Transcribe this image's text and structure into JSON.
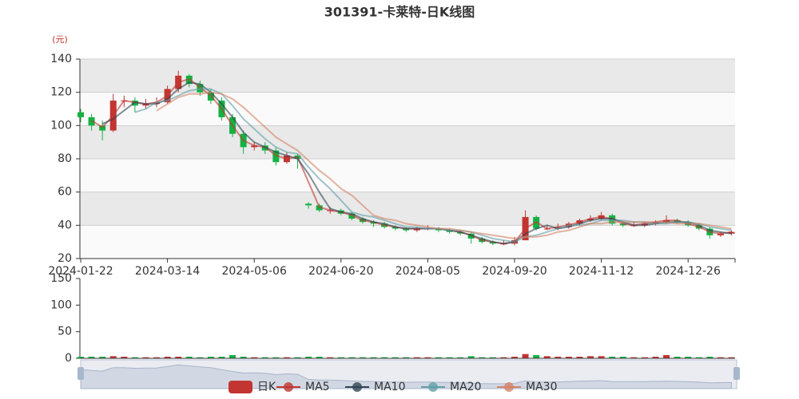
{
  "chart_data": [
    {
      "type": "candlestick",
      "title": "301391-卡莱特-日K线图",
      "y_unit": "(元)",
      "categories": [
        "2024-01-22",
        null,
        null,
        null,
        null,
        null,
        null,
        null,
        "2024-03-14",
        null,
        null,
        null,
        null,
        null,
        null,
        null,
        "2024-05-06",
        null,
        null,
        null,
        null,
        null,
        null,
        null,
        "2024-06-20",
        null,
        null,
        null,
        null,
        null,
        null,
        null,
        "2024-08-05",
        null,
        null,
        null,
        null,
        null,
        null,
        null,
        "2024-09-20",
        null,
        null,
        null,
        null,
        null,
        null,
        null,
        "2024-11-12",
        null,
        null,
        null,
        null,
        null,
        null,
        null,
        "2024-12-26",
        null,
        null,
        null,
        null
      ],
      "candles": {
        "name": "日K",
        "up_color": "#c23531",
        "down_color": "#14b143",
        "values": [
          [
            108,
            105,
            102,
            110
          ],
          [
            105,
            100,
            97,
            107
          ],
          [
            100,
            97,
            91,
            103
          ],
          [
            97,
            115,
            96,
            119
          ],
          [
            115,
            115,
            111,
            118
          ],
          [
            115,
            112,
            108,
            117
          ],
          [
            112,
            113,
            110,
            116
          ],
          [
            113,
            114,
            111,
            117
          ],
          [
            114,
            122,
            113,
            124
          ],
          [
            122,
            130,
            120,
            133
          ],
          [
            130,
            125,
            123,
            131
          ],
          [
            125,
            120,
            118,
            127
          ],
          [
            120,
            115,
            113,
            122
          ],
          [
            115,
            105,
            103,
            117
          ],
          [
            105,
            95,
            93,
            107
          ],
          [
            95,
            87,
            83,
            97
          ],
          [
            87,
            88,
            85,
            90
          ],
          [
            88,
            85,
            83,
            90
          ],
          [
            85,
            78,
            76,
            87
          ],
          [
            78,
            82,
            77,
            84
          ],
          [
            82,
            80,
            74,
            83
          ],
          [
            53,
            52,
            50,
            54
          ],
          [
            52,
            49,
            48,
            53
          ],
          [
            49,
            49,
            47,
            51
          ],
          [
            49,
            47,
            46,
            50
          ],
          [
            47,
            44,
            43,
            48
          ],
          [
            44,
            42,
            41,
            45
          ],
          [
            42,
            41,
            39,
            43
          ],
          [
            41,
            39,
            38,
            42
          ],
          [
            39,
            38,
            37,
            40
          ],
          [
            38,
            37,
            36,
            39
          ],
          [
            37,
            38,
            36,
            39
          ],
          [
            38,
            38,
            37,
            40
          ],
          [
            38,
            37,
            36,
            39
          ],
          [
            37,
            36,
            35,
            38
          ],
          [
            36,
            35,
            34,
            37
          ],
          [
            35,
            32,
            29,
            36
          ],
          [
            32,
            30,
            29,
            33
          ],
          [
            30,
            29,
            28,
            31
          ],
          [
            29,
            29,
            28,
            31
          ],
          [
            29,
            31,
            28,
            33
          ],
          [
            31,
            45,
            31,
            49
          ],
          [
            45,
            38,
            37,
            46
          ],
          [
            38,
            38,
            37,
            40
          ],
          [
            38,
            39,
            37,
            41
          ],
          [
            39,
            41,
            38,
            42
          ],
          [
            41,
            43,
            40,
            44
          ],
          [
            43,
            44,
            42,
            46
          ],
          [
            44,
            46,
            43,
            48
          ],
          [
            46,
            41,
            40,
            47
          ],
          [
            41,
            40,
            39,
            42
          ],
          [
            40,
            40,
            39,
            42
          ],
          [
            40,
            41,
            39,
            42
          ],
          [
            41,
            42,
            40,
            43
          ],
          [
            42,
            43,
            41,
            46
          ],
          [
            43,
            42,
            41,
            44
          ],
          [
            42,
            40,
            39,
            43
          ],
          [
            40,
            38,
            37,
            41
          ],
          [
            38,
            34,
            32,
            39
          ],
          [
            34,
            35,
            33,
            36
          ],
          [
            35,
            36,
            34,
            37
          ]
        ]
      },
      "series": [
        {
          "name": "MA5",
          "color": "#c23531",
          "values": [
            null,
            103,
            99,
            106,
            115,
            114,
            113,
            114,
            118,
            126,
            128,
            123,
            118,
            110,
            100,
            91,
            88,
            87,
            82,
            80,
            81,
            66,
            51,
            49,
            48,
            46,
            43,
            42,
            40,
            39,
            38,
            38,
            38,
            38,
            37,
            36,
            34,
            31,
            30,
            29,
            30,
            38,
            42,
            38,
            39,
            40,
            42,
            44,
            45,
            44,
            41,
            40,
            41,
            42,
            43,
            43,
            41,
            39,
            36,
            35,
            36
          ]
        },
        {
          "name": "MA10",
          "color": "#2f4554",
          "values": [
            null,
            null,
            101,
            104,
            109,
            114,
            113,
            113,
            116,
            122,
            126,
            125,
            120,
            113,
            105,
            96,
            90,
            87,
            84,
            82,
            80,
            71,
            60,
            50,
            48,
            47,
            44,
            42,
            41,
            39,
            38,
            38,
            38,
            38,
            37,
            36,
            34,
            32,
            30,
            29,
            30,
            35,
            38,
            40,
            38,
            39,
            41,
            43,
            44,
            44,
            42,
            40,
            40,
            41,
            42,
            42,
            42,
            40,
            37,
            36,
            35
          ]
        },
        {
          "name": "MA20",
          "color": "#61a0a8",
          "values": [
            null,
            null,
            null,
            null,
            null,
            108,
            110,
            114,
            115,
            118,
            121,
            122,
            122,
            119,
            112,
            104,
            98,
            92,
            87,
            84,
            83,
            75,
            68,
            62,
            55,
            48,
            46,
            45,
            43,
            41,
            39,
            39,
            38,
            38,
            37,
            37,
            36,
            34,
            32,
            31,
            30,
            33,
            34,
            36,
            38,
            40,
            40,
            41,
            43,
            43,
            43,
            42,
            42,
            41,
            41,
            42,
            42,
            41,
            39,
            38,
            37
          ]
        },
        {
          "name": "MA30",
          "color": "#d48265",
          "values": [
            null,
            null,
            null,
            null,
            null,
            null,
            null,
            109,
            113,
            117,
            119,
            119,
            120,
            119,
            116,
            111,
            105,
            99,
            93,
            89,
            85,
            79,
            73,
            68,
            62,
            58,
            52,
            46,
            44,
            43,
            41,
            40,
            39,
            38,
            38,
            37,
            36,
            35,
            34,
            33,
            32,
            33,
            33,
            34,
            36,
            37,
            39,
            41,
            41,
            42,
            42,
            42,
            42,
            42,
            42,
            41,
            41,
            41,
            40,
            39,
            38
          ]
        }
      ],
      "ylim": [
        20,
        140
      ],
      "yticks": [
        20,
        40,
        60,
        80,
        100,
        120,
        140
      ],
      "bands": true
    },
    {
      "type": "bar",
      "values": [
        3,
        3,
        3,
        4,
        3,
        2,
        2,
        2,
        3,
        3,
        3,
        2,
        3,
        3,
        6,
        3,
        2,
        2,
        2,
        2,
        2,
        3,
        3,
        2,
        2,
        2,
        2,
        2,
        2,
        2,
        2,
        2,
        2,
        2,
        2,
        2,
        4,
        2,
        2,
        2,
        3,
        8,
        6,
        4,
        3,
        3,
        3,
        4,
        4,
        3,
        3,
        2,
        2,
        3,
        6,
        3,
        3,
        2,
        3,
        2,
        2
      ],
      "ylim": [
        0,
        150
      ],
      "yticks": [
        0,
        50,
        100,
        150
      ]
    }
  ]
}
